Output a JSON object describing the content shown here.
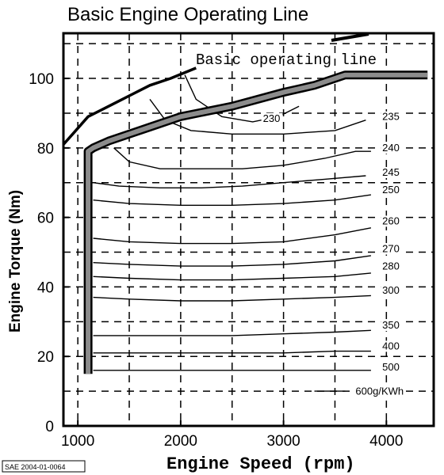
{
  "chart_data": {
    "type": "line",
    "title": "Basic Engine Operating Line",
    "xlabel": "Engine Speed (rpm)",
    "ylabel": "Engine Torque (Nm)",
    "xlim": [
      860,
      4460
    ],
    "ylim": [
      0,
      113
    ],
    "x_ticks": [
      1000,
      2000,
      3000,
      4000
    ],
    "y_ticks": [
      0,
      20,
      40,
      60,
      80,
      100
    ],
    "x_tick_labels": [
      "1000",
      "2000",
      "3000",
      "4000"
    ],
    "y_tick_labels": [
      "0",
      "20",
      "40",
      "60",
      "80",
      "100"
    ],
    "x_grid": [
      1000,
      1500,
      2000,
      2500,
      3000,
      3500,
      4000
    ],
    "y_grid": [
      0,
      10,
      20,
      30,
      40,
      50,
      60,
      70,
      80,
      90,
      100,
      110
    ],
    "grid": true,
    "annotation": "Basic operating line",
    "source_label": "SAE 2004-01-0064",
    "series": [
      {
        "role": "operating-line",
        "x": [
          1100,
          1100,
          1150,
          1300,
          1500,
          1700,
          2000,
          2500,
          3000,
          3300,
          3600,
          4000,
          4400
        ],
        "y": [
          15,
          79,
          80,
          82,
          84,
          86,
          89,
          92,
          96,
          98,
          101,
          101,
          101
        ]
      },
      {
        "role": "max-torque",
        "x": [
          860,
          950,
          1100,
          1300,
          1500,
          1700,
          1900,
          2150
        ],
        "y": [
          81,
          84,
          89,
          92,
          95,
          98,
          100,
          103
        ]
      }
    ],
    "contours": [
      {
        "label": "230",
        "label_at": [
          2800,
          87.5
        ],
        "x": [
          2040,
          2150,
          2400,
          2700,
          2950,
          3150
        ],
        "y": [
          101,
          94,
          89,
          87.5,
          89,
          92
        ]
      },
      {
        "label": "235",
        "label_at": [
          3960,
          88
        ],
        "x": [
          1700,
          1850,
          2100,
          2500,
          3000,
          3500,
          3800
        ],
        "y": [
          94,
          88,
          85,
          84,
          84,
          85,
          88
        ]
      },
      {
        "label": "240",
        "label_at": [
          3960,
          79
        ],
        "x": [
          1350,
          1500,
          1800,
          2200,
          2600,
          3000,
          3400,
          3700,
          3850
        ],
        "y": [
          80,
          76,
          74,
          74,
          74,
          75,
          77,
          79,
          79
        ]
      },
      {
        "label": "245",
        "label_at": [
          3960,
          72
        ],
        "x": [
          1150,
          1400,
          1800,
          2200,
          2600,
          3000,
          3400,
          3800
        ],
        "y": [
          70,
          69,
          68.5,
          68.5,
          69,
          70,
          71,
          72
        ]
      },
      {
        "label": "250",
        "label_at": [
          3960,
          67
        ],
        "x": [
          1150,
          1500,
          2000,
          2500,
          3000,
          3500,
          3850
        ],
        "y": [
          65,
          64,
          63.5,
          63.5,
          64,
          65,
          66.5
        ]
      },
      {
        "label": "260",
        "label_at": [
          3960,
          58
        ],
        "x": [
          1150,
          1500,
          2000,
          2500,
          3000,
          3500,
          3850
        ],
        "y": [
          54,
          53,
          52.5,
          52.5,
          53,
          55,
          57
        ]
      },
      {
        "label": "270",
        "label_at": [
          3960,
          50
        ],
        "x": [
          1150,
          1500,
          2000,
          2500,
          3000,
          3500,
          3850
        ],
        "y": [
          47,
          46.5,
          46,
          46,
          46.5,
          47.5,
          49
        ]
      },
      {
        "label": "280",
        "label_at": [
          3960,
          45
        ],
        "x": [
          1150,
          1500,
          2000,
          2500,
          3000,
          3500,
          3850
        ],
        "y": [
          43,
          42.5,
          42,
          42,
          42.5,
          43,
          44
        ]
      },
      {
        "label": "300",
        "label_at": [
          3960,
          38
        ],
        "x": [
          1150,
          1500,
          2000,
          2500,
          3000,
          3500,
          3850
        ],
        "y": [
          37,
          36.5,
          36,
          36,
          36.5,
          37,
          37.5
        ]
      },
      {
        "label": "350",
        "label_at": [
          3960,
          28
        ],
        "x": [
          1150,
          1500,
          2000,
          2500,
          3000,
          3500,
          3850
        ],
        "y": [
          26,
          26,
          26,
          26,
          26.5,
          27,
          27.5
        ]
      },
      {
        "label": "400",
        "label_at": [
          3960,
          22
        ],
        "x": [
          1150,
          1500,
          2000,
          2500,
          3000,
          3500,
          3850
        ],
        "y": [
          21,
          21,
          21,
          21,
          21,
          21.5,
          21.5
        ]
      },
      {
        "label": "500",
        "label_at": [
          3960,
          16
        ],
        "x": [
          1150,
          1500,
          2000,
          2500,
          3000,
          3500,
          3850
        ],
        "y": [
          16,
          16,
          16,
          16,
          16,
          16,
          16
        ]
      },
      {
        "label": "600g/KWh",
        "label_at": [
          3700,
          9
        ],
        "x": [
          3300,
          3450,
          3600
        ],
        "y": [
          10,
          10,
          10
        ]
      }
    ]
  }
}
